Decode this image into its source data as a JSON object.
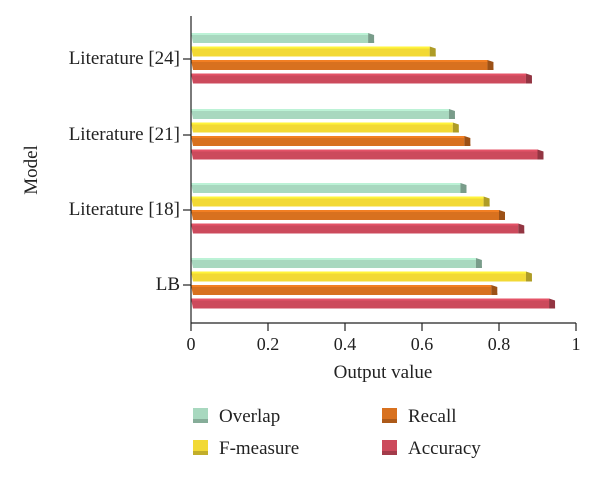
{
  "chart_data": {
    "type": "bar",
    "orientation": "horizontal",
    "categories": [
      "Literature [24]",
      "Literature [21]",
      "Literature [18]",
      "LB"
    ],
    "series": [
      {
        "name": "Overlap",
        "color": "#a8d8bf",
        "values": [
          0.46,
          0.67,
          0.7,
          0.74
        ]
      },
      {
        "name": "F-measure",
        "color": "#f2d935",
        "values": [
          0.62,
          0.68,
          0.76,
          0.87
        ]
      },
      {
        "name": "Recall",
        "color": "#d8711f",
        "values": [
          0.77,
          0.71,
          0.8,
          0.78
        ]
      },
      {
        "name": "Accuracy",
        "color": "#cc4a5c",
        "values": [
          0.87,
          0.9,
          0.85,
          0.93
        ]
      }
    ],
    "xlabel": "Output value",
    "ylabel": "Model",
    "xlim": [
      0,
      1
    ],
    "xticks": [
      "0",
      "0.2",
      "0.4",
      "0.6",
      "0.8",
      "1"
    ],
    "grid": false,
    "legend": "bottom"
  }
}
